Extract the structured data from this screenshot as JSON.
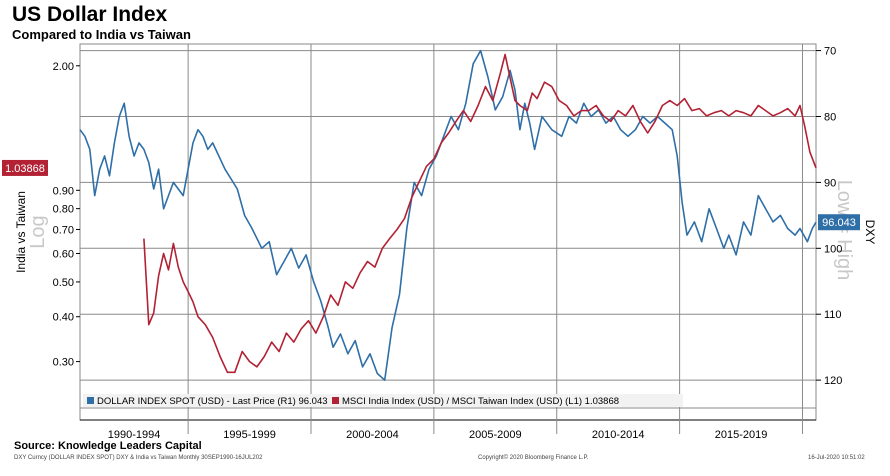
{
  "header": {
    "title": "US Dollar Index",
    "subtitle": "Compared to India vs Taiwan"
  },
  "footer": {
    "source": "Source: Knowledge Leaders Capital",
    "ticker_line": "DXY Curncy (DOLLAR INDEX SPOT) DXY & India vs Taiwan  Monthly 30SEP1990-16JUL202",
    "copyright": "Copyright© 2020 Bloomberg Finance L.P.",
    "timestamp": "16-Jul-2020 10:51:02"
  },
  "colors": {
    "dxy": "#2f6fa8",
    "india_taiwan": "#b22234",
    "grid": "#8a8a8a",
    "watermark": "#c8c8c8"
  },
  "chart_data": {
    "type": "line",
    "title": "US Dollar Index",
    "subtitle": "Compared to India vs Taiwan",
    "x_range": [
      1990.6,
      2020.55
    ],
    "x_gridlines": [
      1990,
      1995,
      2000,
      2005,
      2010,
      2015,
      2020
    ],
    "period_labels": [
      "1990-1994",
      "1995-1999",
      "2000-2004",
      "2005-2009",
      "2010-2014",
      "2015-2019"
    ],
    "left_axis": {
      "label": "India vs Taiwan",
      "scale": "log",
      "watermark": "Log",
      "range": [
        0.25,
        2.3
      ],
      "ticks": [
        0.3,
        0.4,
        0.5,
        0.6,
        0.7,
        0.8,
        0.9,
        2.0
      ],
      "tick_labels": [
        "0.30",
        "0.40",
        "0.50",
        "0.60",
        "0.70",
        "0.80",
        "0.90",
        "2.00"
      ],
      "last_value": 1.03868,
      "last_value_label": "1.03868"
    },
    "right_axis": {
      "label": "DXY",
      "inverted": true,
      "watermark": "Low = High",
      "range": [
        69,
        121.5
      ],
      "ticks": [
        70,
        80,
        90,
        100,
        110,
        120
      ],
      "tick_labels": [
        "70",
        "80",
        "90",
        "100",
        "110",
        "120"
      ],
      "last_value": 96.043,
      "last_value_label": "96.043"
    },
    "legend": [
      "DOLLAR INDEX SPOT (USD) - Last Price (R1) 96.043",
      "MSCI India Index (USD) / MSCI Taiwan Index (USD) (L1) 1.03868"
    ],
    "series": [
      {
        "name": "DOLLAR INDEX SPOT (USD) - Last Price (R1)",
        "axis": "right",
        "x": [
          1990.6,
          1990.8,
          1991.0,
          1991.2,
          1991.4,
          1991.6,
          1991.8,
          1992.0,
          1992.2,
          1992.4,
          1992.6,
          1992.8,
          1993.0,
          1993.2,
          1993.4,
          1993.6,
          1993.8,
          1994.0,
          1994.2,
          1994.4,
          1994.6,
          1994.8,
          1995.0,
          1995.2,
          1995.4,
          1995.6,
          1995.8,
          1996.0,
          1996.5,
          1997.0,
          1997.3,
          1997.6,
          1998.0,
          1998.3,
          1998.6,
          1998.9,
          1999.2,
          1999.5,
          1999.8,
          2000.1,
          2000.4,
          2000.7,
          2000.9,
          2001.2,
          2001.5,
          2001.8,
          2002.1,
          2002.4,
          2002.7,
          2003.0,
          2003.3,
          2003.6,
          2003.9,
          2004.2,
          2004.5,
          2004.8,
          2005.1,
          2005.4,
          2005.7,
          2006.0,
          2006.3,
          2006.6,
          2006.9,
          2007.2,
          2007.5,
          2007.8,
          2008.1,
          2008.3,
          2008.5,
          2008.7,
          2008.9,
          2009.1,
          2009.4,
          2009.8,
          2010.2,
          2010.5,
          2010.8,
          2011.1,
          2011.4,
          2011.7,
          2012.0,
          2012.3,
          2012.6,
          2012.9,
          2013.2,
          2013.5,
          2013.8,
          2014.1,
          2014.4,
          2014.7,
          2014.9,
          2015.1,
          2015.3,
          2015.6,
          2015.9,
          2016.2,
          2016.5,
          2016.8,
          2017.0,
          2017.3,
          2017.6,
          2017.9,
          2018.2,
          2018.5,
          2018.8,
          2019.1,
          2019.4,
          2019.7,
          2019.9,
          2020.2,
          2020.4,
          2020.55
        ],
        "values": [
          82,
          83,
          85,
          92,
          88,
          86,
          89,
          84,
          80,
          78,
          83,
          86,
          84,
          85,
          87,
          91,
          88,
          94,
          92,
          90,
          91,
          92,
          88,
          84,
          82,
          83,
          85,
          84,
          88,
          91,
          95,
          97,
          100,
          99,
          104,
          102,
          100,
          103,
          101,
          105,
          108,
          112,
          115,
          113,
          116,
          114,
          118,
          116,
          119,
          120,
          112,
          107,
          97,
          90,
          92,
          88,
          86,
          83,
          80,
          82,
          78,
          72,
          70,
          74,
          79,
          77,
          73,
          76,
          82,
          78,
          81,
          85,
          80,
          82,
          83,
          80,
          81,
          78,
          80,
          79,
          81,
          80,
          82,
          83,
          82,
          80,
          81,
          80,
          81,
          82,
          86,
          93,
          98,
          96,
          99,
          94,
          97,
          100,
          98,
          101,
          96,
          98,
          92,
          94,
          96,
          95,
          97,
          98,
          97,
          99,
          97,
          96.043
        ]
      },
      {
        "name": "MSCI India Index (USD) / MSCI Taiwan Index (USD) (L1)",
        "axis": "left",
        "x": [
          1993.2,
          1993.4,
          1993.6,
          1993.8,
          1994.0,
          1994.2,
          1994.4,
          1994.6,
          1994.8,
          1995.0,
          1995.2,
          1995.4,
          1995.7,
          1996.0,
          1996.3,
          1996.6,
          1996.9,
          1997.2,
          1997.5,
          1997.8,
          1998.1,
          1998.4,
          1998.7,
          1999.0,
          1999.3,
          1999.6,
          1999.9,
          2000.2,
          2000.5,
          2000.8,
          2001.1,
          2001.4,
          2001.7,
          2002.0,
          2002.3,
          2002.6,
          2002.9,
          2003.2,
          2003.5,
          2003.8,
          2004.1,
          2004.4,
          2004.7,
          2005.0,
          2005.3,
          2005.6,
          2005.9,
          2006.2,
          2006.5,
          2006.8,
          2007.1,
          2007.4,
          2007.7,
          2007.9,
          2008.1,
          2008.3,
          2008.5,
          2008.8,
          2009.0,
          2009.2,
          2009.5,
          2009.8,
          2010.1,
          2010.4,
          2010.7,
          2011.0,
          2011.3,
          2011.6,
          2011.9,
          2012.2,
          2012.5,
          2012.8,
          2013.1,
          2013.4,
          2013.7,
          2014.0,
          2014.3,
          2014.6,
          2014.9,
          2015.2,
          2015.5,
          2015.8,
          2016.1,
          2016.4,
          2016.7,
          2017.0,
          2017.3,
          2017.6,
          2017.9,
          2018.2,
          2018.5,
          2018.8,
          2019.1,
          2019.4,
          2019.7,
          2019.9,
          2020.1,
          2020.3,
          2020.55
        ],
        "values": [
          0.66,
          0.38,
          0.41,
          0.52,
          0.6,
          0.54,
          0.64,
          0.55,
          0.5,
          0.47,
          0.44,
          0.4,
          0.38,
          0.35,
          0.31,
          0.28,
          0.28,
          0.32,
          0.3,
          0.29,
          0.31,
          0.34,
          0.32,
          0.36,
          0.34,
          0.37,
          0.39,
          0.36,
          0.4,
          0.46,
          0.43,
          0.5,
          0.48,
          0.53,
          0.57,
          0.55,
          0.62,
          0.66,
          0.7,
          0.75,
          0.86,
          0.95,
          1.05,
          1.1,
          1.22,
          1.3,
          1.4,
          1.5,
          1.4,
          1.55,
          1.75,
          1.6,
          1.9,
          2.15,
          1.85,
          1.6,
          1.55,
          1.5,
          1.68,
          1.62,
          1.8,
          1.75,
          1.6,
          1.55,
          1.45,
          1.5,
          1.5,
          1.55,
          1.45,
          1.4,
          1.5,
          1.45,
          1.55,
          1.4,
          1.3,
          1.4,
          1.55,
          1.6,
          1.55,
          1.62,
          1.5,
          1.52,
          1.45,
          1.48,
          1.5,
          1.45,
          1.5,
          1.48,
          1.45,
          1.55,
          1.5,
          1.45,
          1.48,
          1.52,
          1.45,
          1.55,
          1.35,
          1.15,
          1.03868
        ]
      }
    ]
  }
}
